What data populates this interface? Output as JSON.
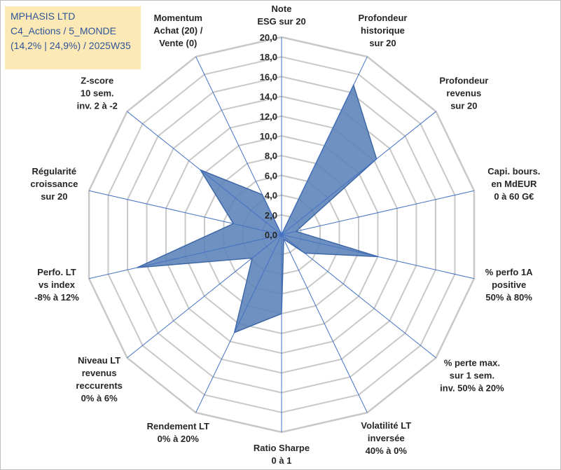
{
  "title_box": {
    "line1": "MPHASIS LTD",
    "line2": "C4_Actions / 5_MONDE",
    "line3": "(14,2% | 24,9%) / 2025W35"
  },
  "colors": {
    "fill": "#5b82b8",
    "stroke": "#3e68a6",
    "grid": "#c8c8c8",
    "spoke": "#4472c4",
    "title_bg": "#fde9b5",
    "title_text": "#2e5597"
  },
  "chart_data": {
    "type": "radar",
    "rmin": 0,
    "rmax": 20,
    "ticks": [
      "0,0",
      "2,0",
      "4,0",
      "6,0",
      "8,0",
      "10,0",
      "12,0",
      "14,0",
      "16,0",
      "18,0",
      "20,0"
    ],
    "tick_values": [
      0,
      2,
      4,
      6,
      8,
      10,
      12,
      14,
      16,
      18,
      20
    ],
    "grid": true,
    "axes": [
      {
        "lines": [
          "Note",
          "ESG sur 20"
        ]
      },
      {
        "lines": [
          "Profondeur",
          "historique",
          "sur 20"
        ]
      },
      {
        "lines": [
          "Profondeur",
          "revenus",
          "sur 20"
        ]
      },
      {
        "lines": [
          "Capi. bours.",
          "en MdEUR",
          "0 à 60 G€"
        ]
      },
      {
        "lines": [
          "% perfo 1A",
          "positive",
          "50% à 80%"
        ]
      },
      {
        "lines": [
          "% perte max.",
          "sur 1 sem.",
          "inv. 50% à 20%"
        ]
      },
      {
        "lines": [
          "Volatilité LT",
          "inversée",
          "40% à 0%"
        ]
      },
      {
        "lines": [
          "Ratio Sharpe",
          "0 à 1"
        ]
      },
      {
        "lines": [
          "Rendement LT",
          "0% à 20%"
        ]
      },
      {
        "lines": [
          "Niveau LT",
          "revenus",
          "reccurents",
          "0% à 6%"
        ]
      },
      {
        "lines": [
          "Perfo. LT",
          "vs index",
          "-8% à 12%"
        ]
      },
      {
        "lines": [
          "Régularité",
          "croissance",
          "sur 20"
        ]
      },
      {
        "lines": [
          "Z-score",
          "10 sem.",
          "inv. 2 à -2"
        ]
      },
      {
        "lines": [
          "Momentum",
          "Achat (20) /",
          "Vente (0)"
        ]
      }
    ],
    "series": [
      {
        "values": [
          0,
          16.8,
          12.3,
          1.5,
          10.0,
          3.0,
          0.5,
          8.0,
          11.0,
          3.8,
          15.0,
          5.0,
          10.5,
          4.5
        ]
      }
    ]
  }
}
